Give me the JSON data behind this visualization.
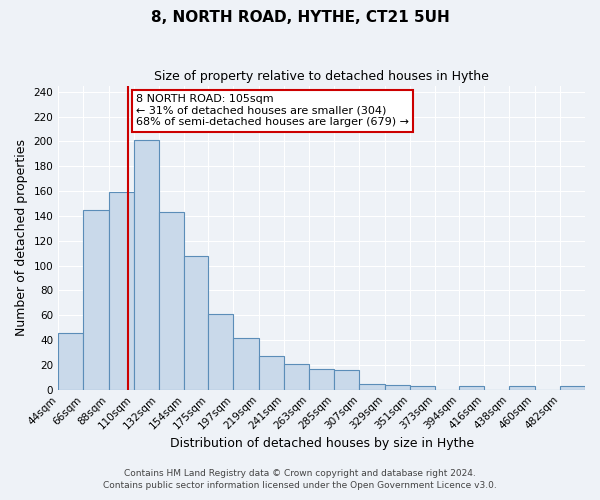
{
  "title": "8, NORTH ROAD, HYTHE, CT21 5UH",
  "subtitle": "Size of property relative to detached houses in Hythe",
  "xlabel": "Distribution of detached houses by size in Hythe",
  "ylabel": "Number of detached properties",
  "bar_labels": [
    "44sqm",
    "66sqm",
    "88sqm",
    "110sqm",
    "132sqm",
    "154sqm",
    "175sqm",
    "197sqm",
    "219sqm",
    "241sqm",
    "263sqm",
    "285sqm",
    "307sqm",
    "329sqm",
    "351sqm",
    "373sqm",
    "394sqm",
    "416sqm",
    "438sqm",
    "460sqm",
    "482sqm"
  ],
  "bar_values": [
    46,
    145,
    159,
    201,
    143,
    108,
    61,
    42,
    27,
    21,
    17,
    16,
    5,
    4,
    3,
    0,
    3,
    0,
    3,
    0,
    3
  ],
  "bar_edges": [
    44,
    66,
    88,
    110,
    132,
    154,
    175,
    197,
    219,
    241,
    263,
    285,
    307,
    329,
    351,
    373,
    394,
    416,
    438,
    460,
    482,
    504
  ],
  "bar_color": "#c9d9ea",
  "bar_edgecolor": "#5b8db8",
  "vline_x": 105,
  "vline_color": "#cc0000",
  "annotation_text": "8 NORTH ROAD: 105sqm\n← 31% of detached houses are smaller (304)\n68% of semi-detached houses are larger (679) →",
  "annotation_box_color": "#ffffff",
  "annotation_box_edgecolor": "#cc0000",
  "ylim": [
    0,
    245
  ],
  "yticks": [
    0,
    20,
    40,
    60,
    80,
    100,
    120,
    140,
    160,
    180,
    200,
    220,
    240
  ],
  "footer_line1": "Contains HM Land Registry data © Crown copyright and database right 2024.",
  "footer_line2": "Contains public sector information licensed under the Open Government Licence v3.0.",
  "background_color": "#eef2f7",
  "grid_color": "#ffffff",
  "title_fontsize": 11,
  "subtitle_fontsize": 9,
  "label_fontsize": 9,
  "tick_fontsize": 7.5,
  "annotation_fontsize": 8,
  "footer_fontsize": 6.5
}
